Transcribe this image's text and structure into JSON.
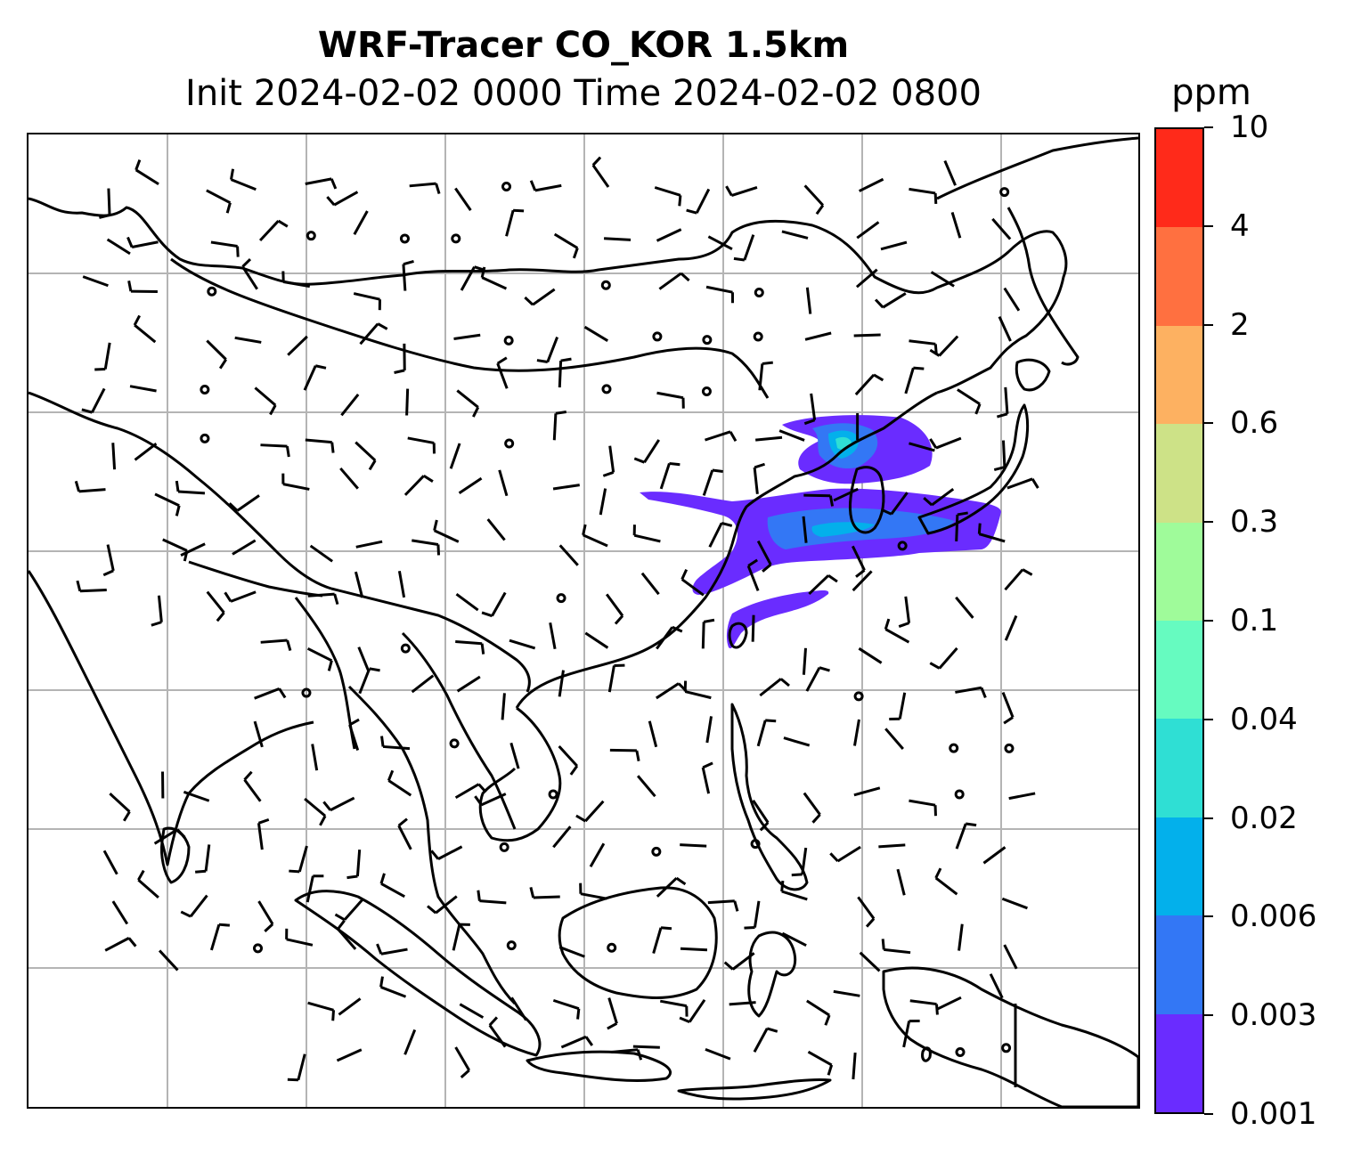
{
  "title": {
    "line1": "WRF-Tracer CO_KOR 1.5km",
    "line2": "Init 2024-02-02 0000 Time 2024-02-02 0800"
  },
  "colorbar": {
    "unit": "ppm",
    "ticks": [
      "0.001",
      "0.003",
      "0.006",
      "0.02",
      "0.04",
      "0.1",
      "0.3",
      "0.6",
      "2",
      "4",
      "10"
    ],
    "colors": [
      "#6a2cff",
      "#3377f5",
      "#03b0eb",
      "#2fdfd4",
      "#66fbc0",
      "#9ffb9a",
      "#cde287",
      "#fdb161",
      "#ff7040",
      "#ff2a1a"
    ]
  },
  "map": {
    "gridlines": true,
    "gridline_color": "#b4b4b4",
    "coastline_color": "#000000",
    "layers": [
      "coastlines",
      "country-borders",
      "wind-barbs",
      "tracer-concentration"
    ],
    "plume_colors": {
      "outer": "#6a2cff",
      "mid": "#3377f5",
      "core": "#03b0eb",
      "peak": "#2fdfd4"
    }
  }
}
